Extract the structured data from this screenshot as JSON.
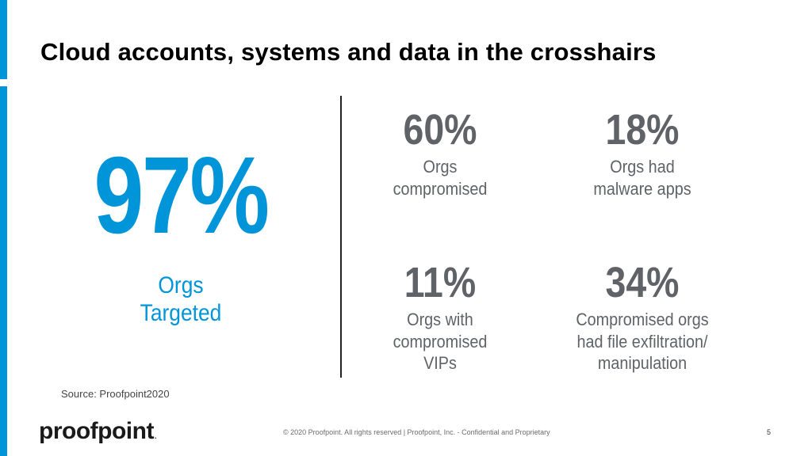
{
  "slide": {
    "title": "Cloud accounts, systems and data in the crosshairs",
    "colors": {
      "accent": "#0095d9",
      "stat_gray": "#5f6368"
    }
  },
  "hero_stat": {
    "value": "97%",
    "label_line1": "Orgs",
    "label_line2": "Targeted"
  },
  "stats": [
    {
      "value": "60%",
      "lines": [
        "Orgs",
        "compromised"
      ]
    },
    {
      "value": "18%",
      "lines": [
        "Orgs had",
        "malware apps"
      ]
    },
    {
      "value": "11%",
      "lines": [
        "Orgs with",
        "compromised",
        "VIPs"
      ]
    },
    {
      "value": "34%",
      "lines": [
        "Compromised orgs",
        "had file exfiltration/",
        "manipulation"
      ]
    }
  ],
  "source": "Source: Proofpoint2020",
  "footer": {
    "logo_text": "proofpoint",
    "logo_mark": ".",
    "copyright": "© 2020  Proofpoint. All rights reserved     |  Proofpoint, Inc.  - Confidential and Proprietary",
    "page_number": "5"
  }
}
